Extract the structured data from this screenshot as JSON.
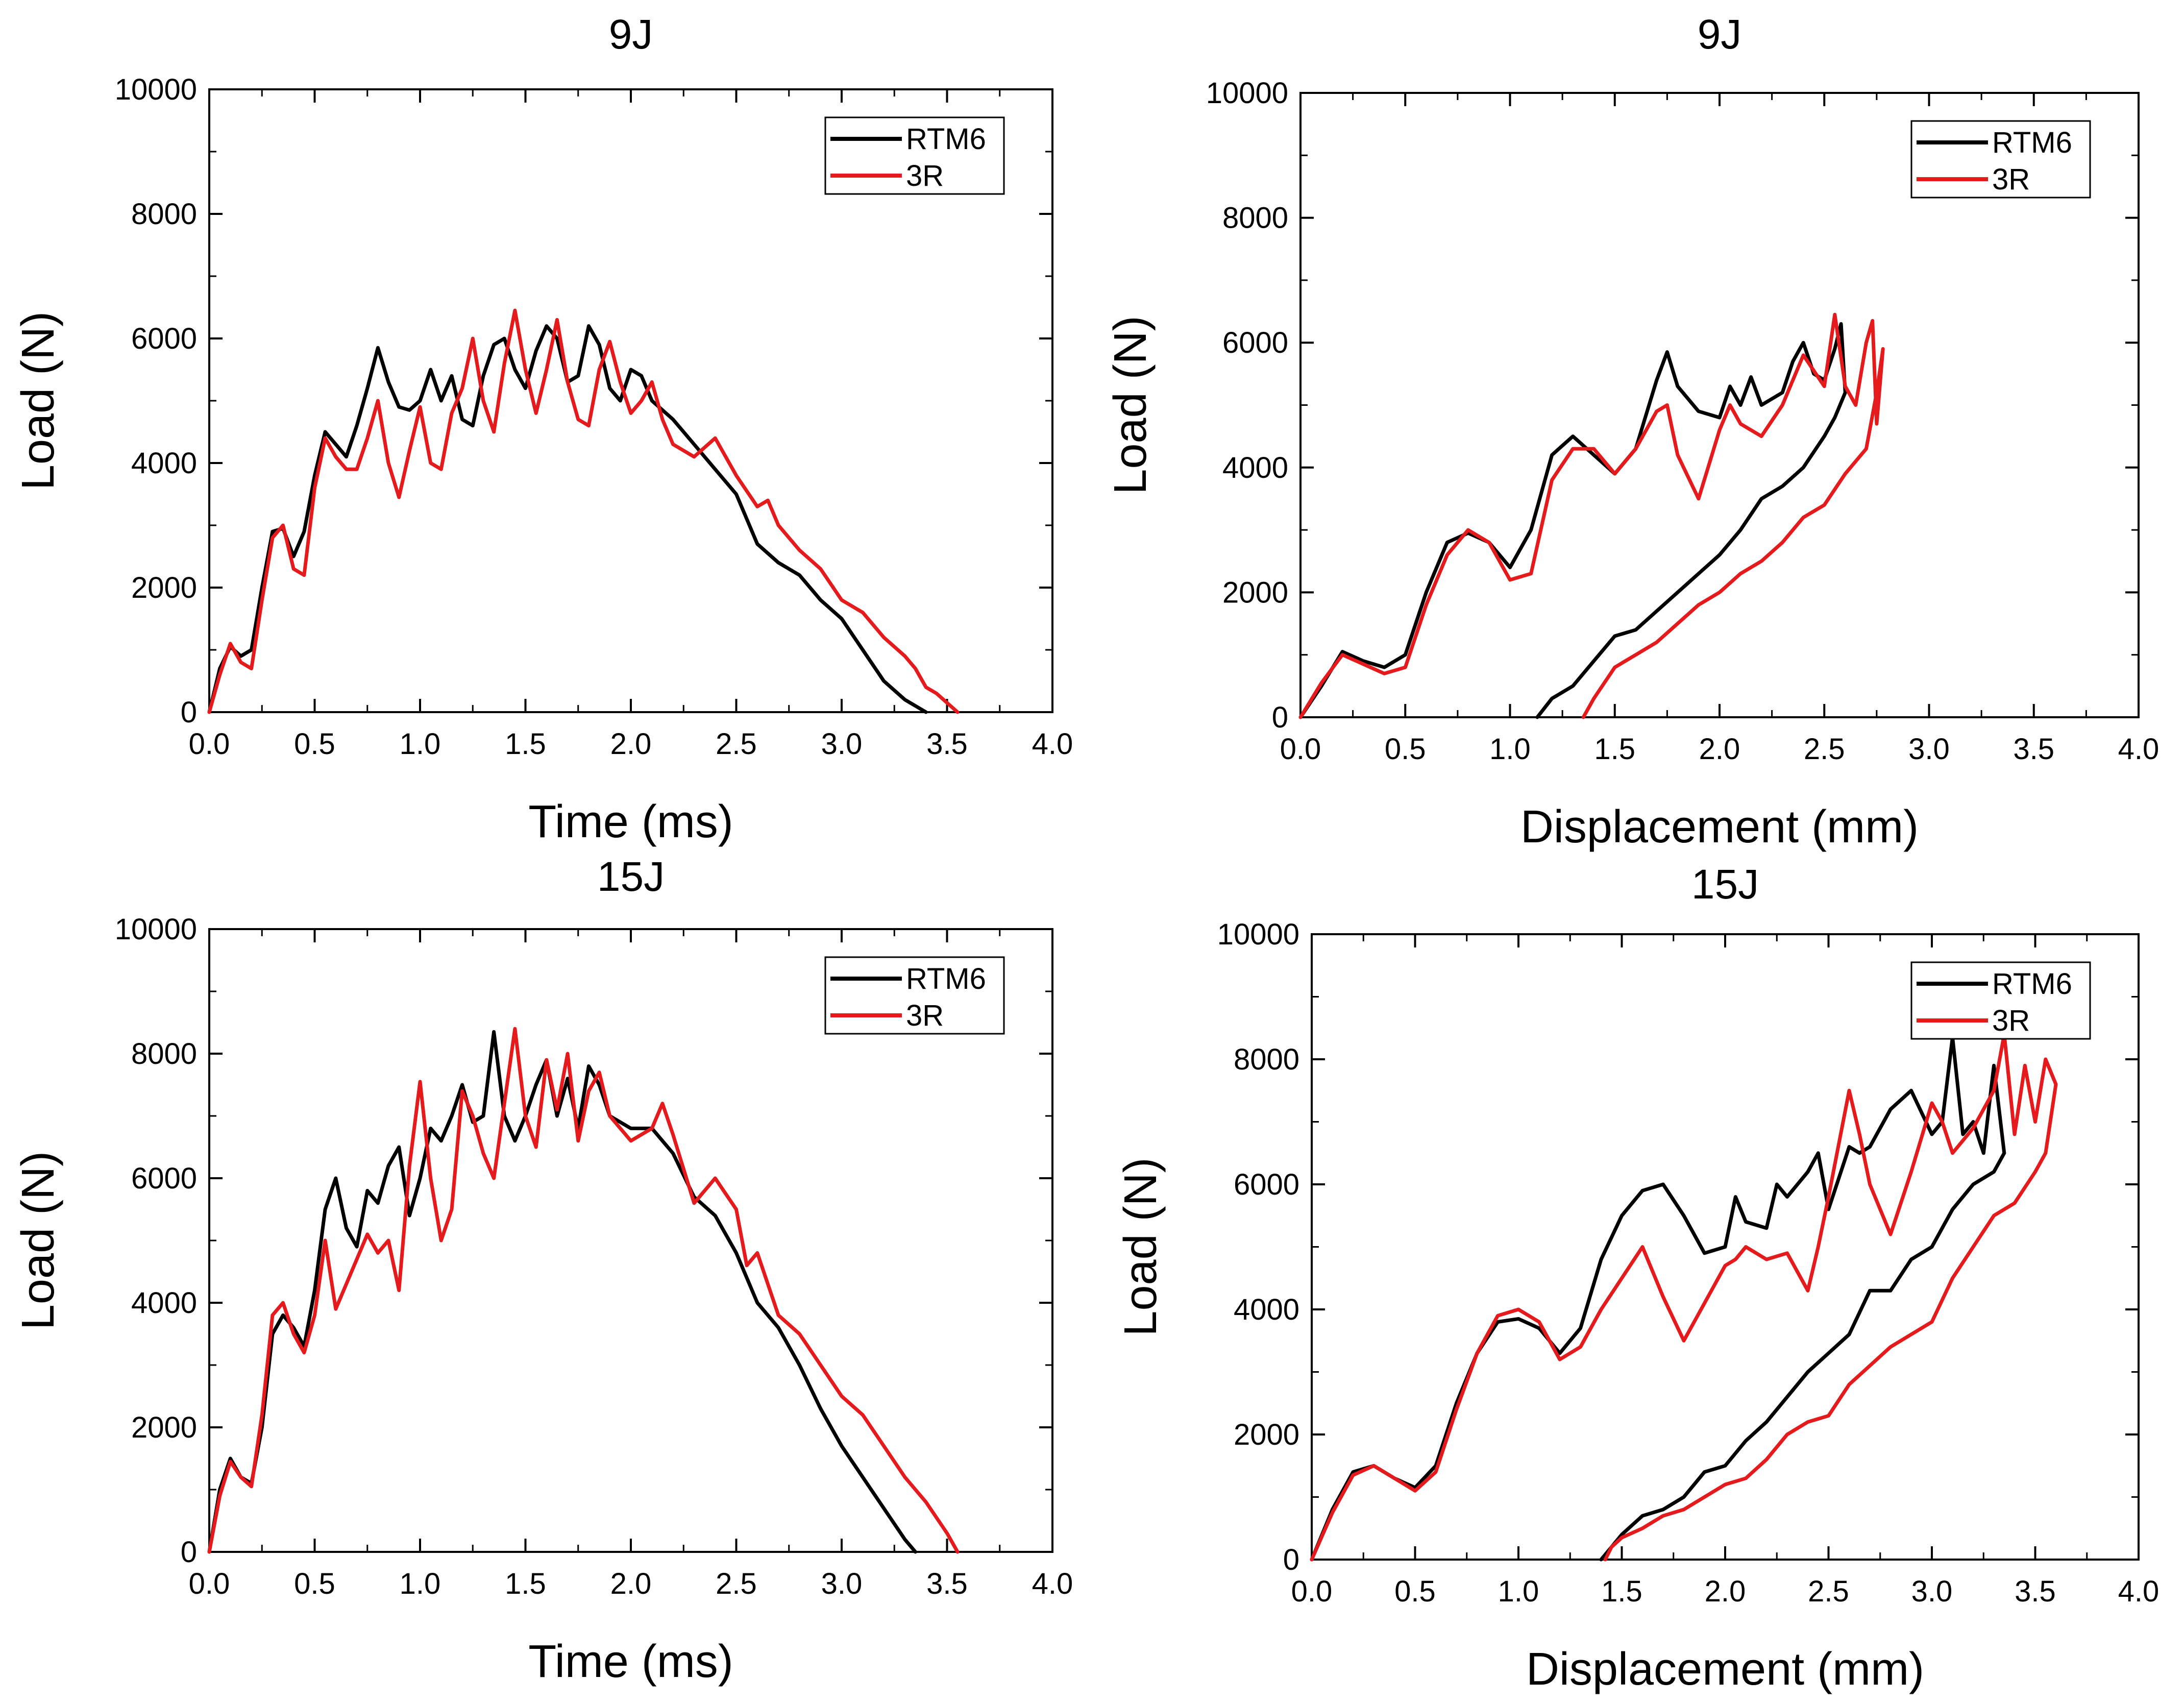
{
  "colors": {
    "RTM6": "#000000",
    "3R": "#e41a1c"
  },
  "chart_data": [
    {
      "type": "line",
      "title": "9J",
      "xlabel": "Time (ms)",
      "ylabel": "Load (N)",
      "xlim": [
        0,
        4
      ],
      "ylim": [
        0,
        10000
      ],
      "xticks": [
        "0.0",
        "0.5",
        "1.0",
        "1.5",
        "2.0",
        "2.5",
        "3.0",
        "3.5",
        "4.0"
      ],
      "yticks": [
        "0",
        "2000",
        "4000",
        "6000",
        "8000",
        "10000"
      ],
      "legend": {
        "position": "top-right",
        "entries": [
          "RTM6",
          "3R"
        ]
      },
      "series": [
        {
          "name": "RTM6",
          "x": [
            0,
            0.05,
            0.1,
            0.15,
            0.2,
            0.25,
            0.3,
            0.35,
            0.4,
            0.45,
            0.5,
            0.55,
            0.6,
            0.65,
            0.7,
            0.75,
            0.8,
            0.85,
            0.9,
            0.95,
            1.0,
            1.05,
            1.1,
            1.15,
            1.2,
            1.25,
            1.3,
            1.35,
            1.4,
            1.45,
            1.5,
            1.55,
            1.6,
            1.65,
            1.7,
            1.75,
            1.8,
            1.85,
            1.9,
            1.95,
            2.0,
            2.05,
            2.1,
            2.2,
            2.3,
            2.4,
            2.5,
            2.6,
            2.7,
            2.8,
            2.9,
            3.0,
            3.1,
            3.2,
            3.3,
            3.35,
            3.4
          ],
          "y": [
            0,
            700,
            1050,
            900,
            1000,
            2000,
            2900,
            2950,
            2500,
            2900,
            3800,
            4500,
            4300,
            4100,
            4600,
            5200,
            5850,
            5300,
            4900,
            4850,
            5000,
            5500,
            5000,
            5400,
            4700,
            4600,
            5400,
            5900,
            6000,
            5500,
            5200,
            5800,
            6200,
            6000,
            5300,
            5400,
            6200,
            5900,
            5200,
            5000,
            5500,
            5400,
            5000,
            4700,
            4300,
            3900,
            3500,
            2700,
            2400,
            2200,
            1800,
            1500,
            1000,
            500,
            200,
            100,
            0
          ]
        },
        {
          "name": "3R",
          "x": [
            0,
            0.05,
            0.1,
            0.15,
            0.2,
            0.25,
            0.3,
            0.35,
            0.4,
            0.45,
            0.5,
            0.55,
            0.6,
            0.65,
            0.7,
            0.75,
            0.8,
            0.85,
            0.9,
            0.95,
            1.0,
            1.05,
            1.1,
            1.15,
            1.2,
            1.25,
            1.3,
            1.35,
            1.4,
            1.45,
            1.5,
            1.55,
            1.6,
            1.65,
            1.7,
            1.75,
            1.8,
            1.85,
            1.9,
            1.95,
            2.0,
            2.05,
            2.1,
            2.15,
            2.2,
            2.3,
            2.4,
            2.5,
            2.6,
            2.65,
            2.7,
            2.8,
            2.9,
            3.0,
            3.1,
            3.2,
            3.3,
            3.35,
            3.4,
            3.45,
            3.5,
            3.55
          ],
          "y": [
            0,
            600,
            1100,
            800,
            700,
            1800,
            2800,
            3000,
            2300,
            2200,
            3600,
            4400,
            4100,
            3900,
            3900,
            4400,
            5000,
            4000,
            3450,
            4200,
            4900,
            4000,
            3900,
            4800,
            5200,
            6000,
            5000,
            4500,
            5600,
            6450,
            5500,
            4800,
            5500,
            6300,
            5300,
            4700,
            4600,
            5500,
            5950,
            5300,
            4800,
            5000,
            5300,
            4700,
            4300,
            4100,
            4400,
            3800,
            3300,
            3400,
            3000,
            2600,
            2300,
            1800,
            1600,
            1200,
            900,
            700,
            400,
            300,
            150,
            0
          ]
        }
      ]
    },
    {
      "type": "line",
      "title": "9J",
      "xlabel": "Displacement (mm)",
      "ylabel": "Load (N)",
      "xlim": [
        0,
        4
      ],
      "ylim": [
        0,
        10000
      ],
      "xticks": [
        "0.0",
        "0.5",
        "1.0",
        "1.5",
        "2.0",
        "2.5",
        "3.0",
        "3.5",
        "4.0"
      ],
      "yticks": [
        "0",
        "2000",
        "4000",
        "6000",
        "8000",
        "10000"
      ],
      "legend": {
        "position": "top-right",
        "entries": [
          "RTM6",
          "3R"
        ]
      },
      "series": [
        {
          "name": "RTM6",
          "x": [
            0,
            0.1,
            0.2,
            0.3,
            0.4,
            0.5,
            0.6,
            0.7,
            0.8,
            0.9,
            1.0,
            1.1,
            1.2,
            1.3,
            1.4,
            1.5,
            1.6,
            1.7,
            1.75,
            1.8,
            1.9,
            2.0,
            2.05,
            2.1,
            2.15,
            2.2,
            2.3,
            2.35,
            2.4,
            2.45,
            2.5,
            2.55,
            2.58,
            2.6,
            2.55,
            2.5,
            2.4,
            2.3,
            2.2,
            2.1,
            2.0,
            1.9,
            1.8,
            1.7,
            1.6,
            1.5,
            1.4,
            1.3,
            1.2,
            1.13
          ],
          "y": [
            0,
            500,
            1050,
            900,
            800,
            1000,
            2000,
            2800,
            2950,
            2800,
            2400,
            3000,
            4200,
            4500,
            4200,
            3900,
            4300,
            5400,
            5850,
            5300,
            4900,
            4800,
            5300,
            5000,
            5450,
            5000,
            5200,
            5700,
            6000,
            5500,
            5400,
            5900,
            6300,
            5200,
            4800,
            4500,
            4000,
            3700,
            3500,
            3000,
            2600,
            2300,
            2000,
            1700,
            1400,
            1300,
            900,
            500,
            300,
            0
          ]
        },
        {
          "name": "3R",
          "x": [
            0,
            0.1,
            0.2,
            0.3,
            0.4,
            0.5,
            0.6,
            0.7,
            0.8,
            0.9,
            1.0,
            1.1,
            1.2,
            1.3,
            1.4,
            1.5,
            1.6,
            1.7,
            1.75,
            1.8,
            1.9,
            2.0,
            2.05,
            2.1,
            2.2,
            2.3,
            2.4,
            2.5,
            2.55,
            2.6,
            2.65,
            2.7,
            2.73,
            2.75,
            2.78,
            2.75,
            2.7,
            2.6,
            2.5,
            2.4,
            2.3,
            2.2,
            2.1,
            2.0,
            1.9,
            1.8,
            1.7,
            1.6,
            1.5,
            1.4,
            1.35
          ],
          "y": [
            0,
            550,
            1000,
            850,
            700,
            800,
            1800,
            2600,
            3000,
            2800,
            2200,
            2300,
            3800,
            4300,
            4300,
            3900,
            4300,
            4900,
            5000,
            4200,
            3500,
            4600,
            5000,
            4700,
            4500,
            5000,
            5800,
            5300,
            6450,
            5300,
            5000,
            6000,
            6350,
            4700,
            5900,
            5200,
            4300,
            3900,
            3400,
            3200,
            2800,
            2500,
            2300,
            2000,
            1800,
            1500,
            1200,
            1000,
            800,
            300,
            0
          ]
        }
      ]
    },
    {
      "type": "line",
      "title": "15J",
      "xlabel": "Time (ms)",
      "ylabel": "Load (N)",
      "xlim": [
        0,
        4
      ],
      "ylim": [
        0,
        10000
      ],
      "xticks": [
        "0.0",
        "0.5",
        "1.0",
        "1.5",
        "2.0",
        "2.5",
        "3.0",
        "3.5",
        "4.0"
      ],
      "yticks": [
        "0",
        "2000",
        "4000",
        "6000",
        "8000",
        "10000"
      ],
      "legend": {
        "position": "top-right",
        "entries": [
          "RTM6",
          "3R"
        ]
      },
      "series": [
        {
          "name": "RTM6",
          "x": [
            0,
            0.05,
            0.1,
            0.15,
            0.2,
            0.25,
            0.3,
            0.35,
            0.4,
            0.45,
            0.5,
            0.55,
            0.6,
            0.65,
            0.7,
            0.75,
            0.8,
            0.85,
            0.9,
            0.95,
            1.0,
            1.05,
            1.1,
            1.15,
            1.2,
            1.25,
            1.3,
            1.35,
            1.4,
            1.45,
            1.5,
            1.55,
            1.6,
            1.65,
            1.7,
            1.75,
            1.8,
            1.85,
            1.9,
            2.0,
            2.1,
            2.2,
            2.3,
            2.4,
            2.5,
            2.6,
            2.7,
            2.8,
            2.9,
            3.0,
            3.1,
            3.2,
            3.3,
            3.35
          ],
          "y": [
            0,
            1000,
            1500,
            1200,
            1100,
            2000,
            3500,
            3800,
            3600,
            3300,
            4200,
            5500,
            6000,
            5200,
            4900,
            5800,
            5600,
            6200,
            6500,
            5400,
            6000,
            6800,
            6600,
            7000,
            7500,
            6900,
            7000,
            8350,
            7000,
            6600,
            7000,
            7500,
            7900,
            7000,
            7600,
            6800,
            7800,
            7500,
            7000,
            6800,
            6800,
            6400,
            5700,
            5400,
            4800,
            4000,
            3600,
            3000,
            2300,
            1700,
            1200,
            700,
            200,
            0
          ]
        },
        {
          "name": "3R",
          "x": [
            0,
            0.05,
            0.1,
            0.15,
            0.2,
            0.25,
            0.3,
            0.35,
            0.4,
            0.45,
            0.5,
            0.55,
            0.6,
            0.65,
            0.7,
            0.75,
            0.8,
            0.85,
            0.9,
            0.95,
            1.0,
            1.05,
            1.1,
            1.15,
            1.2,
            1.25,
            1.3,
            1.35,
            1.4,
            1.45,
            1.5,
            1.55,
            1.6,
            1.65,
            1.7,
            1.75,
            1.8,
            1.85,
            1.9,
            2.0,
            2.1,
            2.15,
            2.2,
            2.3,
            2.35,
            2.4,
            2.5,
            2.55,
            2.6,
            2.7,
            2.8,
            2.9,
            3.0,
            3.1,
            3.2,
            3.3,
            3.4,
            3.5,
            3.55
          ],
          "y": [
            0,
            900,
            1450,
            1200,
            1050,
            2200,
            3800,
            4000,
            3500,
            3200,
            3800,
            5000,
            3900,
            4300,
            4700,
            5100,
            4800,
            5000,
            4200,
            6200,
            7550,
            6000,
            5000,
            5500,
            7400,
            7000,
            6400,
            6000,
            7200,
            8400,
            7000,
            6500,
            7900,
            7100,
            8000,
            6600,
            7400,
            7700,
            7000,
            6600,
            6800,
            7200,
            6700,
            5600,
            5800,
            6000,
            5500,
            4600,
            4800,
            3800,
            3500,
            3000,
            2500,
            2200,
            1700,
            1200,
            800,
            300,
            0
          ]
        }
      ]
    },
    {
      "type": "line",
      "title": "15J",
      "xlabel": "Displacement (mm)",
      "ylabel": "Load (N)",
      "xlim": [
        0,
        4
      ],
      "ylim": [
        0,
        10000
      ],
      "xticks": [
        "0.0",
        "0.5",
        "1.0",
        "1.5",
        "2.0",
        "2.5",
        "3.0",
        "3.5",
        "4.0"
      ],
      "yticks": [
        "0",
        "2000",
        "4000",
        "6000",
        "8000",
        "10000"
      ],
      "legend": {
        "position": "top-right",
        "entries": [
          "RTM6",
          "3R"
        ]
      },
      "series": [
        {
          "name": "RTM6",
          "x": [
            0,
            0.1,
            0.2,
            0.3,
            0.4,
            0.5,
            0.6,
            0.7,
            0.8,
            0.9,
            1.0,
            1.1,
            1.2,
            1.3,
            1.4,
            1.5,
            1.6,
            1.7,
            1.8,
            1.9,
            2.0,
            2.05,
            2.1,
            2.2,
            2.25,
            2.3,
            2.4,
            2.45,
            2.5,
            2.6,
            2.65,
            2.7,
            2.8,
            2.9,
            3.0,
            3.05,
            3.1,
            3.15,
            3.2,
            3.25,
            3.3,
            3.35,
            3.3,
            3.2,
            3.1,
            3.0,
            2.9,
            2.8,
            2.7,
            2.6,
            2.5,
            2.4,
            2.3,
            2.2,
            2.1,
            2.0,
            1.9,
            1.8,
            1.7,
            1.6,
            1.5,
            1.45,
            1.4
          ],
          "y": [
            0,
            800,
            1400,
            1500,
            1300,
            1150,
            1500,
            2500,
            3300,
            3800,
            3850,
            3700,
            3300,
            3700,
            4800,
            5500,
            5900,
            6000,
            5500,
            4900,
            5000,
            5800,
            5400,
            5300,
            6000,
            5800,
            6200,
            6500,
            5600,
            6600,
            6500,
            6600,
            7200,
            7500,
            6800,
            7000,
            8350,
            6800,
            7000,
            6500,
            7900,
            6500,
            6200,
            6000,
            5600,
            5000,
            4800,
            4300,
            4300,
            3600,
            3300,
            3000,
            2600,
            2200,
            1900,
            1500,
            1400,
            1000,
            800,
            700,
            400,
            200,
            0
          ]
        },
        {
          "name": "3R",
          "x": [
            0,
            0.1,
            0.2,
            0.3,
            0.4,
            0.5,
            0.6,
            0.7,
            0.8,
            0.9,
            1.0,
            1.1,
            1.2,
            1.3,
            1.4,
            1.5,
            1.6,
            1.7,
            1.8,
            1.9,
            2.0,
            2.05,
            2.1,
            2.2,
            2.3,
            2.4,
            2.45,
            2.5,
            2.6,
            2.65,
            2.7,
            2.8,
            2.9,
            3.0,
            3.05,
            3.1,
            3.2,
            3.3,
            3.35,
            3.4,
            3.45,
            3.5,
            3.55,
            3.6,
            3.55,
            3.5,
            3.4,
            3.3,
            3.2,
            3.1,
            3.0,
            2.9,
            2.8,
            2.7,
            2.6,
            2.5,
            2.4,
            2.3,
            2.2,
            2.1,
            2.0,
            1.9,
            1.8,
            1.7,
            1.6,
            1.5,
            1.45,
            1.42
          ],
          "y": [
            0,
            750,
            1350,
            1500,
            1300,
            1100,
            1400,
            2400,
            3300,
            3900,
            4000,
            3800,
            3200,
            3400,
            4000,
            4500,
            5000,
            4200,
            3500,
            4100,
            4700,
            4800,
            5000,
            4800,
            4900,
            4300,
            5000,
            5800,
            7500,
            6800,
            6000,
            5200,
            6200,
            7300,
            7000,
            6500,
            6900,
            7500,
            8400,
            6800,
            7900,
            7000,
            8000,
            7600,
            6500,
            6200,
            5700,
            5500,
            5000,
            4500,
            3800,
            3600,
            3400,
            3100,
            2800,
            2300,
            2200,
            2000,
            1600,
            1300,
            1200,
            1000,
            800,
            700,
            500,
            350,
            200,
            0
          ]
        }
      ]
    }
  ]
}
